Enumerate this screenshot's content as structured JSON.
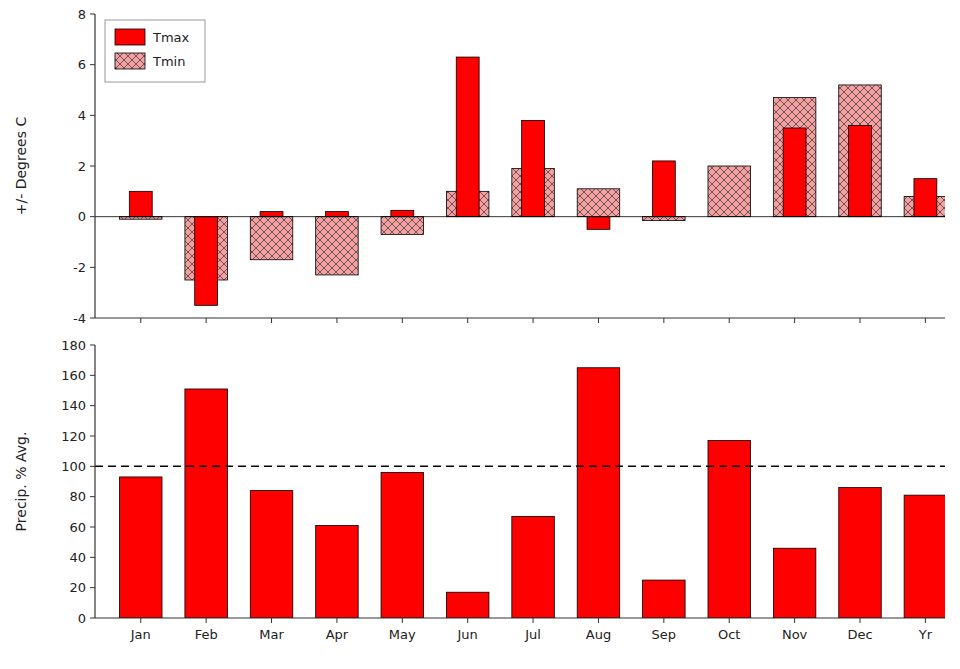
{
  "chart_data": [
    {
      "type": "bar",
      "categories": [
        "Jan",
        "Feb",
        "Mar",
        "Apr",
        "May",
        "Jun",
        "Jul",
        "Aug",
        "Sep",
        "Oct",
        "Nov",
        "Dec",
        "Yr"
      ],
      "series": [
        {
          "name": "Tmax",
          "color": "#ff0000",
          "values": [
            1.0,
            -3.5,
            0.2,
            0.2,
            0.25,
            6.3,
            3.8,
            -0.5,
            2.2,
            0.0,
            3.5,
            3.6,
            1.5
          ]
        },
        {
          "name": "Tmin",
          "color": "#f4a0a0",
          "values": [
            -0.1,
            -2.5,
            -1.7,
            -2.3,
            -0.7,
            1.0,
            1.9,
            1.1,
            -0.15,
            2.0,
            4.7,
            5.2,
            0.8
          ]
        }
      ],
      "y_label": "+/- Degrees C",
      "ylim": [
        -4,
        8
      ],
      "yticks": [
        -4,
        -2,
        0,
        2,
        4,
        6,
        8
      ],
      "legend": "upper left",
      "grid": false,
      "tick_labels": "y"
    },
    {
      "type": "bar",
      "categories": [
        "Jan",
        "Feb",
        "Mar",
        "Apr",
        "May",
        "Jun",
        "Jul",
        "Aug",
        "Sep",
        "Oct",
        "Nov",
        "Dec",
        "Yr"
      ],
      "values": [
        93,
        151,
        84,
        61,
        96,
        17,
        67,
        165,
        25,
        117,
        46,
        86,
        81
      ],
      "color": "#ff0000",
      "reference_line": 100,
      "y_label": "Precip. % Avg.",
      "ylim": [
        0,
        180
      ],
      "yticks": [
        0,
        20,
        40,
        60,
        80,
        100,
        120,
        140,
        160,
        180
      ],
      "grid": false
    }
  ]
}
